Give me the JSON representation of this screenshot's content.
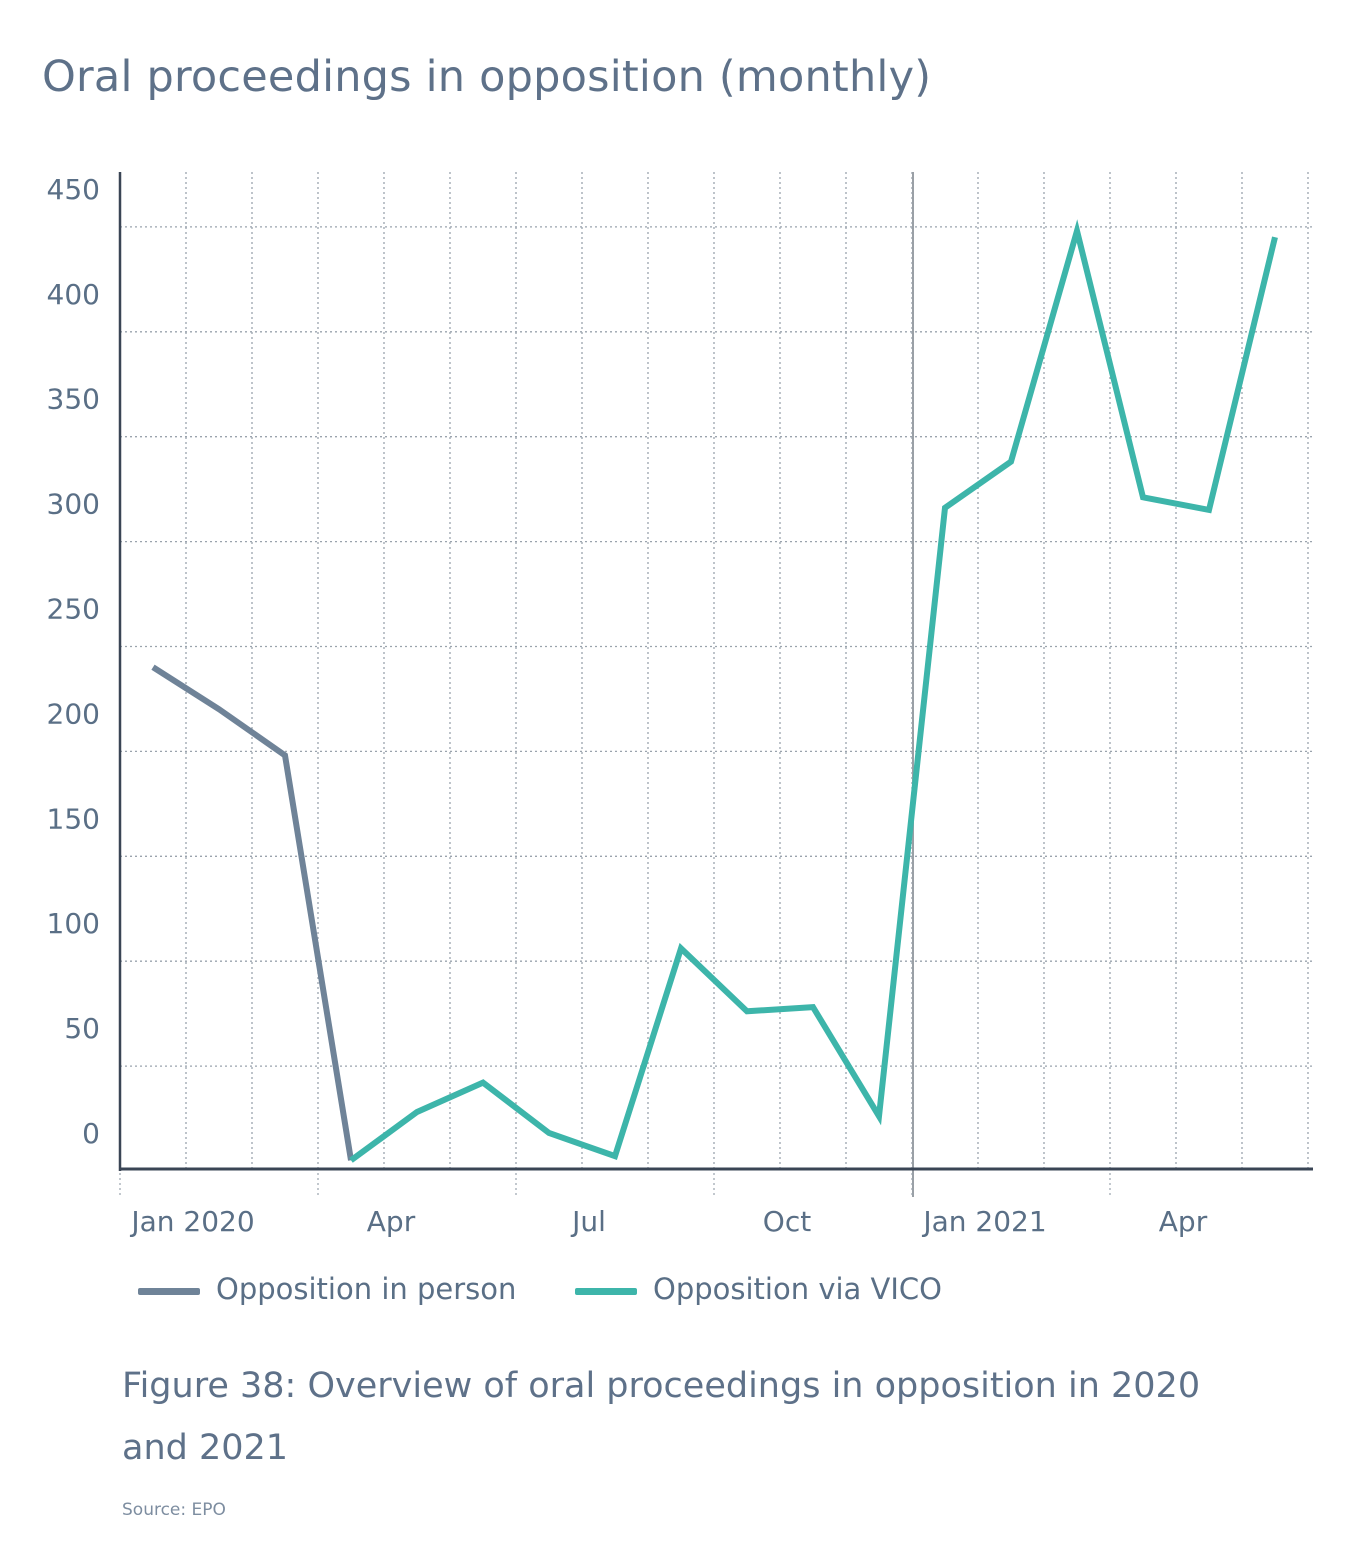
{
  "title": "Oral proceedings in opposition (monthly)",
  "caption": "Figure 38: Overview of oral proceedings in opposition in 2020 and 2021",
  "source": "Source: EPO",
  "colors": {
    "person": "#6f8398",
    "vico": "#3db5aa",
    "grid": "#9aa3ad",
    "axis": "#3a4555",
    "divider": "#9aa0a6"
  },
  "legend": [
    {
      "label": "Opposition in person",
      "color": "#6f8398"
    },
    {
      "label": "Opposition via VICO",
      "color": "#3db5aa"
    }
  ],
  "chart_data": {
    "type": "line",
    "title": "Oral proceedings in opposition (monthly)",
    "xlabel": "",
    "ylabel": "",
    "ylim": [
      -15,
      460
    ],
    "yticks": [
      0,
      50,
      100,
      150,
      200,
      250,
      300,
      350,
      400,
      450
    ],
    "x": [
      "Jan 2020",
      "Feb 2020",
      "Mar 2020",
      "Apr 2020",
      "May 2020",
      "Jun 2020",
      "Jul 2020",
      "Aug 2020",
      "Sep 2020",
      "Oct 2020",
      "Nov 2020",
      "Dec 2020",
      "Jan 2021",
      "Feb 2021",
      "Mar 2021",
      "Apr 2021",
      "May 2021",
      "Jun 2021"
    ],
    "xtick_labels": [
      {
        "month_index": 0,
        "label": "Jan 2020"
      },
      {
        "month_index": 3,
        "label": "Apr"
      },
      {
        "month_index": 6,
        "label": "Jul"
      },
      {
        "month_index": 9,
        "label": "Oct"
      },
      {
        "month_index": 12,
        "label": "Jan 2021"
      },
      {
        "month_index": 15,
        "label": "Apr"
      }
    ],
    "year_divider_after_month_index": 11,
    "grid": true,
    "legend_position": "bottom",
    "series": [
      {
        "name": "Opposition in person",
        "color": "#6f8398",
        "points": [
          [
            0,
            222
          ],
          [
            1,
            202
          ],
          [
            2,
            180
          ],
          [
            3,
            -13
          ]
        ]
      },
      {
        "name": "Opposition via VICO",
        "color": "#3db5aa",
        "points": [
          [
            3,
            -13
          ],
          [
            4,
            10
          ],
          [
            5,
            24
          ],
          [
            6,
            0
          ],
          [
            7,
            -11
          ],
          [
            8,
            88
          ],
          [
            9,
            58
          ],
          [
            10,
            60
          ],
          [
            11,
            8
          ],
          [
            12,
            298
          ],
          [
            13,
            320
          ],
          [
            14,
            430
          ],
          [
            15,
            303
          ],
          [
            16,
            297
          ],
          [
            17,
            427
          ]
        ]
      }
    ]
  }
}
